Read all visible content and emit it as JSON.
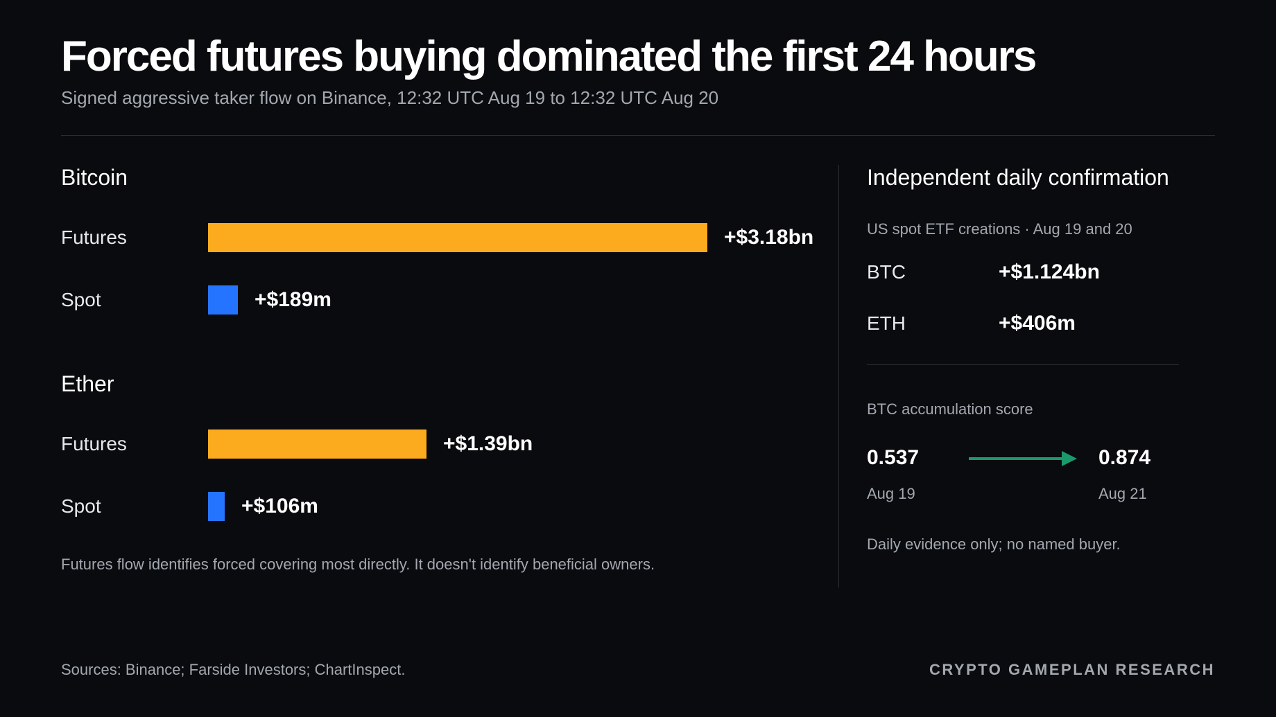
{
  "header": {
    "title": "Forced futures buying dominated the first 24 hours",
    "subtitle": "Signed aggressive taker flow on Binance, 12:32 UTC Aug 19 to 12:32 UTC Aug 20"
  },
  "colors": {
    "background": "#0a0b0e",
    "futures": "#fdab1e",
    "spot": "#2574ff",
    "arrow": "#1a9a6c"
  },
  "chart_data": {
    "type": "bar",
    "orientation": "horizontal",
    "title": "Forced futures buying dominated the first 24 hours",
    "unit": "USD millions",
    "groups": [
      {
        "name": "Bitcoin",
        "bars": [
          {
            "label": "Futures",
            "value": 3180,
            "display": "+$3.18bn"
          },
          {
            "label": "Spot",
            "value": 189,
            "display": "+$189m"
          }
        ]
      },
      {
        "name": "Ether",
        "bars": [
          {
            "label": "Futures",
            "value": 1390,
            "display": "+$1.39bn"
          },
          {
            "label": "Spot",
            "value": 106,
            "display": "+$106m"
          }
        ]
      }
    ],
    "footnote": "Futures flow identifies forced covering most directly. It doesn't identify beneficial owners."
  },
  "confirmation": {
    "heading": "Independent daily confirmation",
    "etf_subheading": "US spot ETF creations · Aug 19 and 20",
    "etf_rows": [
      {
        "label": "BTC",
        "value": "+$1.124bn"
      },
      {
        "label": "ETH",
        "value": "+$406m"
      }
    ],
    "score_heading": "BTC accumulation score",
    "score_from": {
      "value": "0.537",
      "date": "Aug 19"
    },
    "score_to": {
      "value": "0.874",
      "date": "Aug 21"
    },
    "note": "Daily evidence only; no named buyer."
  },
  "footer": {
    "sources": "Sources: Binance; Farside Investors; ChartInspect.",
    "brand": "CRYPTO GAMEPLAN RESEARCH"
  }
}
